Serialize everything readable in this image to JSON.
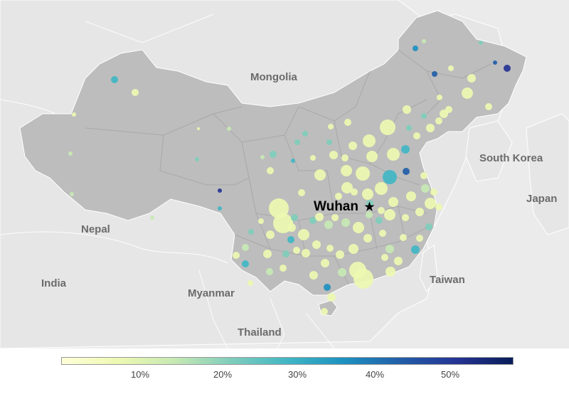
{
  "map": {
    "country_labels": {
      "mongolia": "Mongolia",
      "south_korea": "South Korea",
      "japan": "Japan",
      "nepal": "Nepal",
      "india": "India",
      "myanmar": "Myanmar",
      "thailand": "Thailand",
      "taiwan": "Taiwan"
    },
    "city_label": "Wuhan",
    "city_marker": "★",
    "colors": {
      "background": "#ebebeb",
      "land": "#bdbdbd",
      "neighbor_land": "#e8e8e8",
      "border": "#ffffff",
      "marker_scale": [
        "#ffffd9",
        "#edf8b1",
        "#c7e9b4",
        "#7fcdbb",
        "#41b6c4",
        "#1d91c0",
        "#225ea8",
        "#253494",
        "#081d58"
      ]
    }
  },
  "legend": {
    "ticks": [
      "10%",
      "20%",
      "30%",
      "40%",
      "50%"
    ],
    "gradient_colors": [
      "#ffffd9",
      "#edf8b1",
      "#c7e9b4",
      "#7fcdbb",
      "#41b6c4",
      "#1d91c0",
      "#225ea8",
      "#253494",
      "#081d58"
    ]
  }
}
